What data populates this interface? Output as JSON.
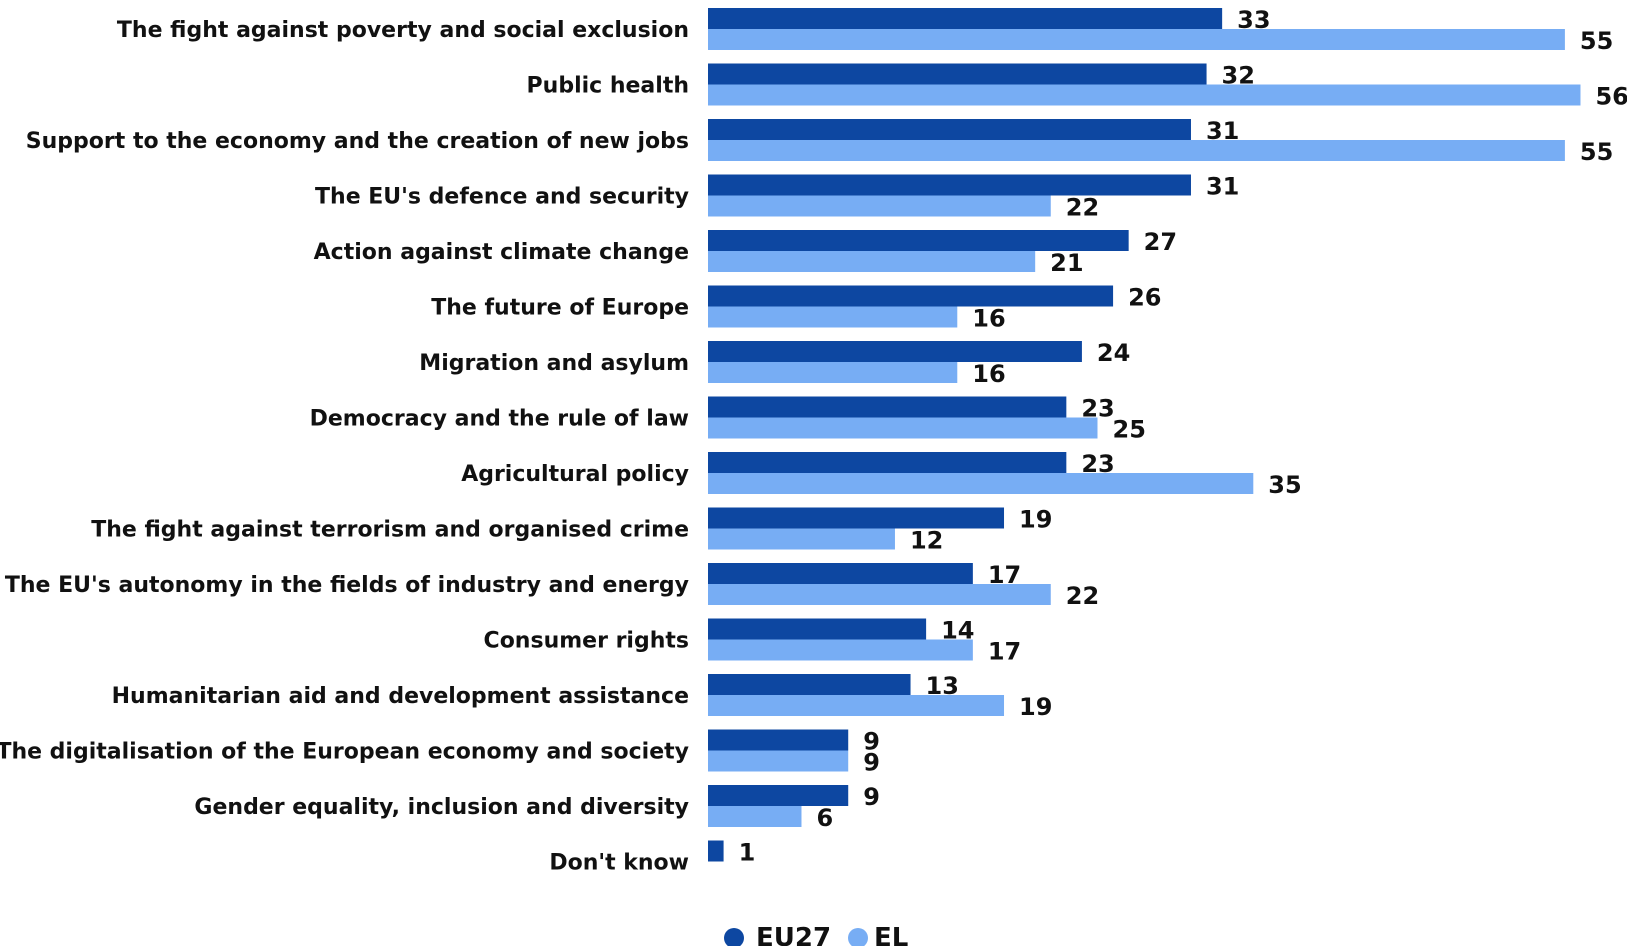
{
  "chart_data": {
    "type": "bar",
    "orientation": "horizontal",
    "title": "",
    "xlabel": "",
    "ylabel": "",
    "xlim": [
      0,
      56
    ],
    "grid": false,
    "legend": "bottom-center",
    "categories": [
      "The fight against poverty and social exclusion",
      "Public health",
      "Support to the economy and the creation of new jobs",
      "The EU's defence and security",
      "Action against climate change",
      "The future of Europe",
      "Migration and asylum",
      "Democracy and the rule of law",
      "Agricultural policy",
      "The fight against terrorism and organised crime",
      "The EU's autonomy in the fields of industry and energy",
      "Consumer rights",
      "Humanitarian aid and development assistance",
      "The digitalisation of the European economy and society",
      "Gender equality, inclusion and diversity",
      "Don't know"
    ],
    "series": [
      {
        "name": "EU27",
        "color": "#0d47a1",
        "values": [
          33,
          32,
          31,
          31,
          27,
          26,
          24,
          23,
          23,
          19,
          17,
          14,
          13,
          9,
          9,
          1
        ]
      },
      {
        "name": "EL",
        "color": "#77adf4",
        "values": [
          55,
          56,
          55,
          22,
          21,
          16,
          16,
          25,
          35,
          12,
          22,
          17,
          19,
          9,
          6,
          null
        ]
      }
    ]
  }
}
